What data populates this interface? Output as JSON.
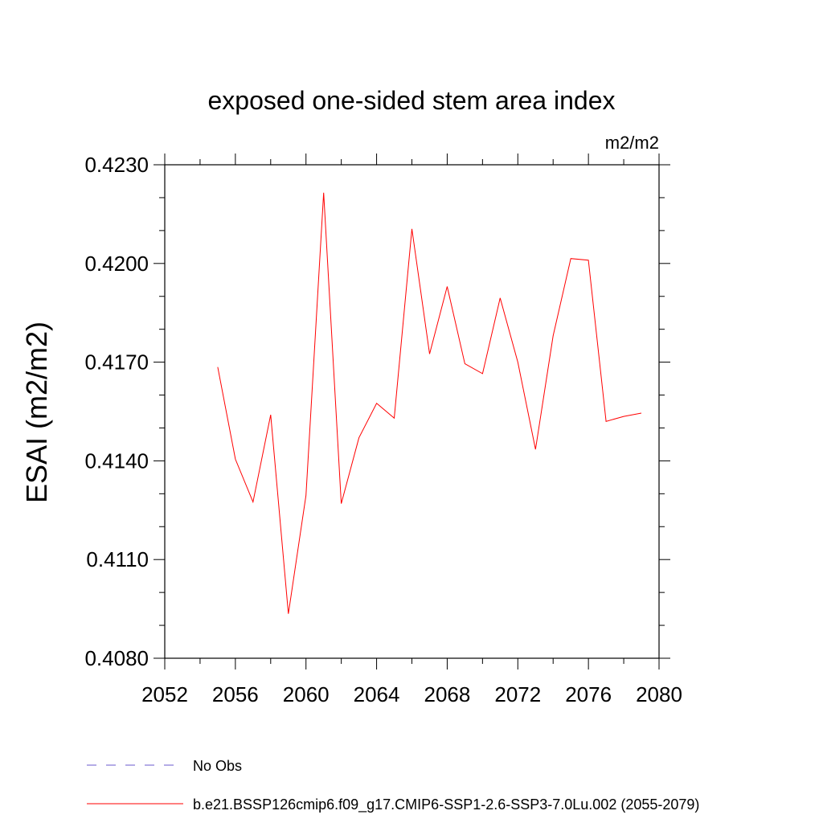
{
  "chart_data": {
    "type": "line",
    "title": "exposed one-sided stem area index",
    "units": "m2/m2",
    "ylabel": "ESAI  (m2/m2)",
    "xlabel": "",
    "xlim": [
      2052,
      2080
    ],
    "ylim": [
      0.408,
      0.423
    ],
    "x_ticks": [
      2052,
      2056,
      2060,
      2064,
      2068,
      2072,
      2076,
      2080
    ],
    "x_tick_labels": [
      "2052",
      "2056",
      "2060",
      "2064",
      "2068",
      "2072",
      "2076",
      "2080"
    ],
    "y_ticks": [
      0.408,
      0.411,
      0.414,
      0.417,
      0.42,
      0.423
    ],
    "y_tick_labels": [
      "0.4080",
      "0.4110",
      "0.4140",
      "0.4170",
      "0.4200",
      "0.4230"
    ],
    "grid": false,
    "legend_placement": "bottom",
    "series": [
      {
        "name": "b.e21.BSSP126cmip6.f09_g17.CMIP6-SSP1-2.6-SSP3-7.0Lu.002 (2055-2079)",
        "color": "#ff0000",
        "style": "solid",
        "x": [
          2055,
          2056,
          2057,
          2058,
          2059,
          2060,
          2061,
          2062,
          2063,
          2064,
          2065,
          2066,
          2067,
          2068,
          2069,
          2070,
          2071,
          2072,
          2073,
          2074,
          2075,
          2076,
          2077,
          2078,
          2079
        ],
        "values": [
          0.41685,
          0.41405,
          0.41275,
          0.4154,
          0.40935,
          0.41295,
          0.42215,
          0.4127,
          0.4147,
          0.41575,
          0.4153,
          0.42105,
          0.41725,
          0.4193,
          0.41695,
          0.41665,
          0.41895,
          0.417,
          0.41435,
          0.4178,
          0.42015,
          0.4201,
          0.4152,
          0.41535,
          0.41545
        ]
      },
      {
        "name": "No Obs",
        "color": "#6a5acd",
        "style": "dashed",
        "x": [],
        "values": []
      }
    ]
  }
}
